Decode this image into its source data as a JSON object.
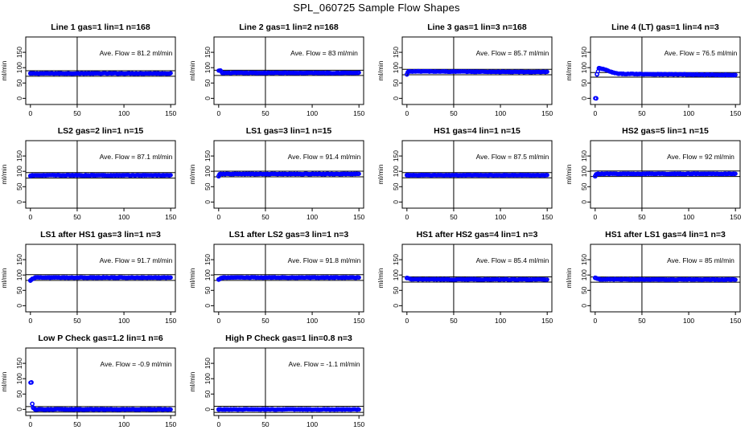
{
  "page": {
    "title": "SPL_060725  Sample Flow Shapes"
  },
  "axes": {
    "ylabel": "ml/min",
    "xlim": [
      0,
      150
    ],
    "ylim": [
      -20,
      200
    ],
    "xticks": [
      0,
      50,
      100,
      150
    ],
    "yticks": [
      0,
      50,
      100,
      150
    ],
    "vline_x": 50,
    "avg_prefix": "Ave. Flow = ",
    "avg_unit": "ml/min"
  },
  "colors": {
    "points": "#0000ff",
    "lines": "#000000"
  },
  "chart_data": [
    {
      "type": "scatter",
      "title": "Line 1 gas=1 lin=1 n=168",
      "avg": 81.2,
      "avg_text": "81.2",
      "hlines": [
        90,
        72
      ],
      "x": [
        0,
        2,
        150
      ],
      "y": [
        81.2,
        81.2,
        81.2
      ],
      "xrange": [
        0,
        150
      ]
    },
    {
      "type": "scatter",
      "title": "Line 2 gas=1 lin=2 n=168",
      "avg": 83,
      "avg_text": "83",
      "hlines": [
        91.5,
        74.5
      ],
      "x": [
        2,
        4,
        150
      ],
      "y": [
        90,
        83,
        83
      ],
      "xrange": [
        0,
        150
      ]
    },
    {
      "type": "scatter",
      "title": "Line 3 gas=1 lin=3 n=168",
      "avg": 85.7,
      "avg_text": "85.7",
      "hlines": [
        94.5,
        77
      ],
      "x": [
        0,
        1,
        2,
        150
      ],
      "y": [
        78,
        85,
        88,
        85.7
      ],
      "xrange": [
        0,
        150
      ]
    },
    {
      "type": "scatter",
      "title": "Line 4 (LT) gas=1 lin=4 n=3",
      "avg": 76.5,
      "avg_text": "76.5",
      "hlines": [
        84,
        69
      ],
      "x": [
        1,
        2,
        4,
        8,
        12,
        18,
        25,
        150
      ],
      "y": [
        0,
        78,
        98,
        96,
        92,
        85,
        80,
        76
      ],
      "xrange": [
        0,
        150
      ]
    },
    {
      "type": "scatter",
      "title": "LS2 gas=2 lin=1 n=15",
      "avg": 87.1,
      "avg_text": "87.1",
      "hlines": [
        96,
        78
      ],
      "x": [
        0,
        2,
        150
      ],
      "y": [
        85,
        87.1,
        87.1
      ],
      "xrange": [
        0,
        150
      ]
    },
    {
      "type": "scatter",
      "title": "LS1 gas=3 lin=1 n=15",
      "avg": 91.4,
      "avg_text": "91.4",
      "hlines": [
        100.5,
        82
      ],
      "x": [
        0,
        1,
        2,
        150
      ],
      "y": [
        84,
        90,
        91.4,
        91.4
      ],
      "xrange": [
        0,
        150
      ]
    },
    {
      "type": "scatter",
      "title": "HS1 gas=4 lin=1 n=15",
      "avg": 87.5,
      "avg_text": "87.5",
      "hlines": [
        96,
        79
      ],
      "x": [
        0,
        2,
        150
      ],
      "y": [
        87.5,
        87.5,
        87.5
      ],
      "xrange": [
        0,
        150
      ]
    },
    {
      "type": "scatter",
      "title": "HS2 gas=5 lin=1 n=15",
      "avg": 92,
      "avg_text": "92",
      "hlines": [
        101,
        83
      ],
      "x": [
        0,
        1,
        3,
        150
      ],
      "y": [
        84,
        90,
        92,
        92
      ],
      "xrange": [
        0,
        150
      ]
    },
    {
      "type": "scatter",
      "title": "LS1 after HS1 gas=3 lin=1 n=3",
      "avg": 91.7,
      "avg_text": "91.7",
      "hlines": [
        101,
        82.5
      ],
      "x": [
        0,
        2,
        5,
        150
      ],
      "y": [
        82,
        87,
        91.7,
        91.7
      ],
      "xrange": [
        0,
        150
      ]
    },
    {
      "type": "scatter",
      "title": "LS1 after LS2 gas=3 lin=1 n=3",
      "avg": 91.8,
      "avg_text": "91.8",
      "hlines": [
        101,
        82.5
      ],
      "x": [
        0,
        2,
        5,
        150
      ],
      "y": [
        85,
        89,
        91.8,
        91.8
      ],
      "xrange": [
        0,
        150
      ]
    },
    {
      "type": "scatter",
      "title": "HS1 after HS2 gas=4 lin=1 n=3",
      "avg": 85.4,
      "avg_text": "85.4",
      "hlines": [
        94,
        77
      ],
      "x": [
        0,
        5,
        150
      ],
      "y": [
        90,
        86,
        85.4
      ],
      "xrange": [
        0,
        150
      ]
    },
    {
      "type": "scatter",
      "title": "HS1 after LS1 gas=4 lin=1 n=3",
      "avg": 85,
      "avg_text": "85",
      "hlines": [
        93.5,
        76.5
      ],
      "x": [
        0,
        5,
        150
      ],
      "y": [
        91,
        86,
        85
      ],
      "xrange": [
        0,
        150
      ]
    },
    {
      "type": "scatter",
      "title": "Low P Check gas=1.2 lin=1 n=6",
      "avg": -0.9,
      "avg_text": "-0.9",
      "hlines": [
        9,
        -9
      ],
      "x": [
        1,
        2,
        3,
        5,
        150
      ],
      "y": [
        88,
        18,
        5,
        0,
        0
      ],
      "xrange": [
        0,
        150
      ]
    },
    {
      "type": "scatter",
      "title": "High P Check gas=1 lin=0.8 n=3",
      "avg": -1.1,
      "avg_text": "-1.1",
      "hlines": [
        10,
        -10
      ],
      "x": [
        0,
        150
      ],
      "y": [
        0,
        0
      ],
      "xrange": [
        0,
        150
      ]
    }
  ]
}
